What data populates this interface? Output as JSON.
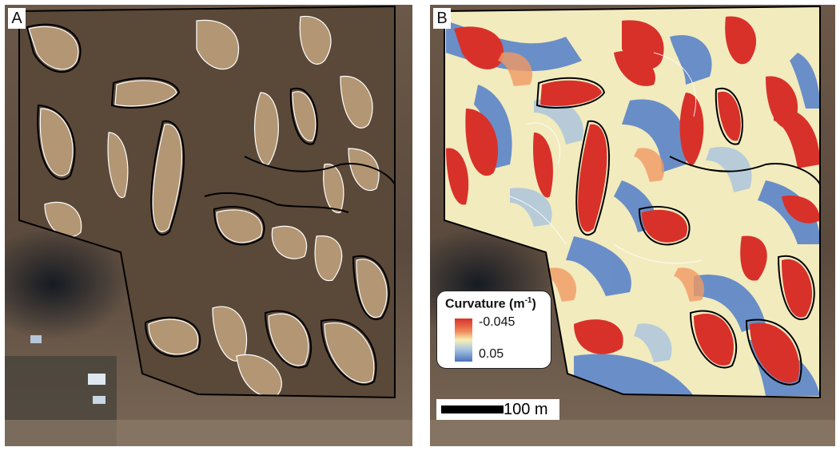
{
  "panels": [
    {
      "letter": "A"
    },
    {
      "letter": "B"
    }
  ],
  "legend": {
    "title": "Curvature (m",
    "title_sup": "-1",
    "title_close": ")",
    "max_label": "-0.045",
    "min_label": "0.05"
  },
  "scalebar": {
    "label": "100 m"
  },
  "colors": {
    "boundary": "#000000",
    "contour_light": "#ffffff",
    "contour_dark": "#000000",
    "soil_dark": "#5e4a39",
    "soil_light": "#b59a76",
    "curvature_concave": "#d8312a",
    "curvature_flat": "#f7efb6",
    "curvature_convex": "#4a72bf"
  }
}
